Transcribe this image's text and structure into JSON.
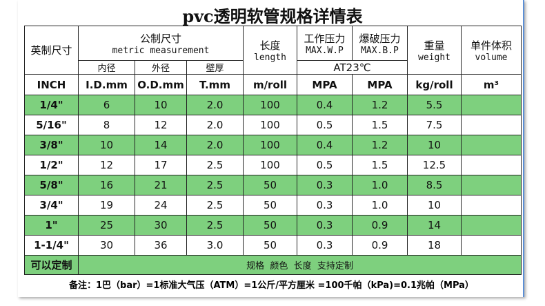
{
  "title": "pvc透明软管规格详情表",
  "header": {
    "inch": "英制尺寸",
    "metric": "公制尺寸",
    "metric_en": "metric measurement",
    "id": "内径",
    "od": "外径",
    "wall": "壁厚",
    "length": "长度",
    "length_en": "length",
    "wp": "工作压力",
    "wp_en": "MAX.W.P",
    "bp": "爆破压力",
    "bp_en": "MAX.B.P",
    "temp": "AT23℃",
    "weight": "重量",
    "weight_en": "weight",
    "volume": "单件体积",
    "volume_en": "volume"
  },
  "units": [
    "INCH",
    "I.D.mm",
    "O.D.mm",
    "T.mm",
    "m/roll",
    "MPA",
    "MPA",
    "kg/roll",
    "m³"
  ],
  "rows": [
    [
      "1/4\"",
      "6",
      "10",
      "2.0",
      "100",
      "0.4",
      "1.2",
      "5.5"
    ],
    [
      "5/16\"",
      "8",
      "12",
      "2.0",
      "100",
      "0.5",
      "1.5",
      "7.5"
    ],
    [
      "3/8\"",
      "10",
      "14",
      "2.0",
      "100",
      "0.4",
      "1.2",
      "10"
    ],
    [
      "1/2\"",
      "12",
      "17",
      "2.5",
      "100",
      "0.5",
      "1.5",
      "12.5"
    ],
    [
      "5/8\"",
      "16",
      "21",
      "2.5",
      "50",
      "0.3",
      "1.0",
      "8.5"
    ],
    [
      "3/4\"",
      "19",
      "24",
      "2.5",
      "50",
      "0.3",
      "1.0",
      "10"
    ],
    [
      "1\"",
      "25",
      "30",
      "2.5",
      "50",
      "0.3",
      "0.9",
      "14"
    ],
    [
      "1-1/4\"",
      "30",
      "36",
      "3.0",
      "50",
      "0.3",
      "0.9",
      "18"
    ]
  ],
  "custom": {
    "label": "可以定制",
    "text": "规格  颜色  长度  支持定制"
  },
  "note": "备注：1巴（bar）=1标准大气压（ATM）=1公斤/平方厘米 =100千帕（kPa)=0.1兆帕（MPa）"
}
